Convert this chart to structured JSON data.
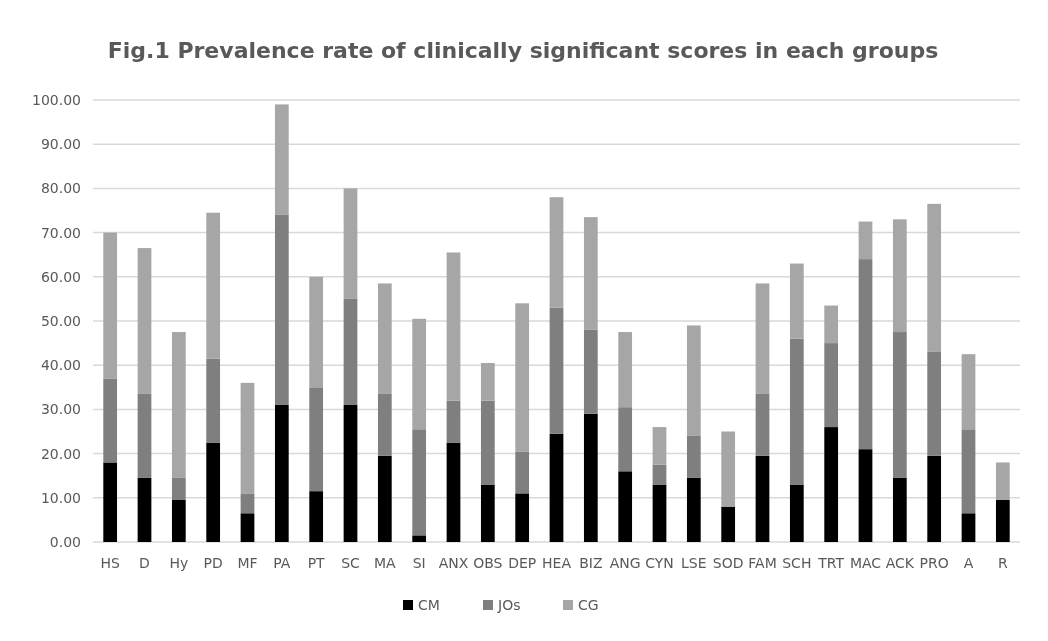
{
  "chart_data": {
    "type": "bar",
    "title": "Fig.1 Prevalence rate of clinically significant scores in each groups",
    "stacked": true,
    "grid": "y",
    "legend": "bottom",
    "categories": [
      "HS",
      "D",
      "Hy",
      "PD",
      "MF",
      "PA",
      "PT",
      "SC",
      "MA",
      "SI",
      "ANX",
      "OBS",
      "DEP",
      "HEA",
      "BIZ",
      "ANG",
      "CYN",
      "LSE",
      "SOD",
      "FAM",
      "SCH",
      "TRT",
      "MAC",
      "ACK",
      "PRO",
      "A",
      "R"
    ],
    "series": [
      {
        "name": "CM",
        "color": "#000000",
        "values": [
          18,
          14.5,
          9.5,
          22.5,
          6.5,
          31,
          11.5,
          31,
          19.5,
          1.5,
          22.5,
          13,
          11,
          24.5,
          29,
          16,
          13,
          14.5,
          8,
          19.5,
          13,
          26,
          21,
          14.5,
          19.5,
          6.5,
          9.5
        ]
      },
      {
        "name": "JOs",
        "color": "#7f7f7f",
        "values": [
          19,
          19,
          5,
          19,
          4.5,
          43,
          23.5,
          24,
          14,
          24,
          9.5,
          19,
          9.5,
          28.5,
          19,
          14.5,
          4.5,
          9.5,
          0,
          14,
          33,
          19,
          43,
          33,
          23.5,
          19,
          0
        ]
      },
      {
        "name": "CG",
        "color": "#a6a6a6",
        "values": [
          33,
          33,
          33,
          33,
          25,
          25,
          25,
          25,
          25,
          25,
          33.5,
          8.5,
          33.5,
          25,
          25.5,
          17,
          8.5,
          25,
          17,
          25,
          17,
          8.5,
          8.5,
          25.5,
          33.5,
          17,
          8.5
        ]
      }
    ],
    "ylim": [
      0,
      100
    ],
    "yticks": [
      {
        "value": 0,
        "label": "0.00"
      },
      {
        "value": 10,
        "label": "10.00"
      },
      {
        "value": 20,
        "label": "20.00"
      },
      {
        "value": 30,
        "label": "30.00"
      },
      {
        "value": 40,
        "label": "40.00"
      },
      {
        "value": 50,
        "label": "50.00"
      },
      {
        "value": 60,
        "label": "60.00"
      },
      {
        "value": 70,
        "label": "70.00"
      },
      {
        "value": 80,
        "label": "80.00"
      },
      {
        "value": 90,
        "label": "90.00"
      },
      {
        "value": 100,
        "label": "100.00"
      }
    ]
  }
}
